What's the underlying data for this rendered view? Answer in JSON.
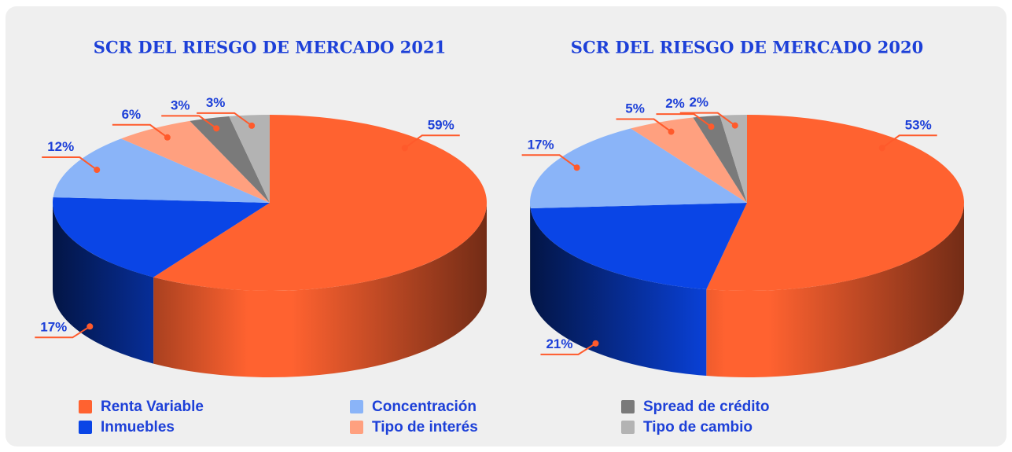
{
  "chart_data": [
    {
      "type": "pie",
      "title": "SCR DEL RIESGO DE MERCADO 2021",
      "values": [
        59,
        17,
        12,
        6,
        3,
        3
      ],
      "value_labels": [
        "59%",
        "17%",
        "12%",
        "6%",
        "3%",
        "3%"
      ]
    },
    {
      "type": "pie",
      "title": "SCR DEL RIESGO DE MERCADO 2020",
      "values": [
        53,
        21,
        17,
        5,
        2,
        2
      ],
      "value_labels": [
        "53%",
        "21%",
        "17%",
        "5%",
        "2%",
        "2%"
      ]
    }
  ],
  "legend": {
    "labels": [
      "Renta Variable",
      "Inmuebles",
      "Concentración",
      "Tipo de interés",
      "Spread de crédito",
      "Tipo de cambio"
    ],
    "colors": [
      "#ff6230",
      "#0a45e6",
      "#8ab4f8",
      "#ffa07f",
      "#7a7a7a",
      "#b3b3b3"
    ]
  }
}
